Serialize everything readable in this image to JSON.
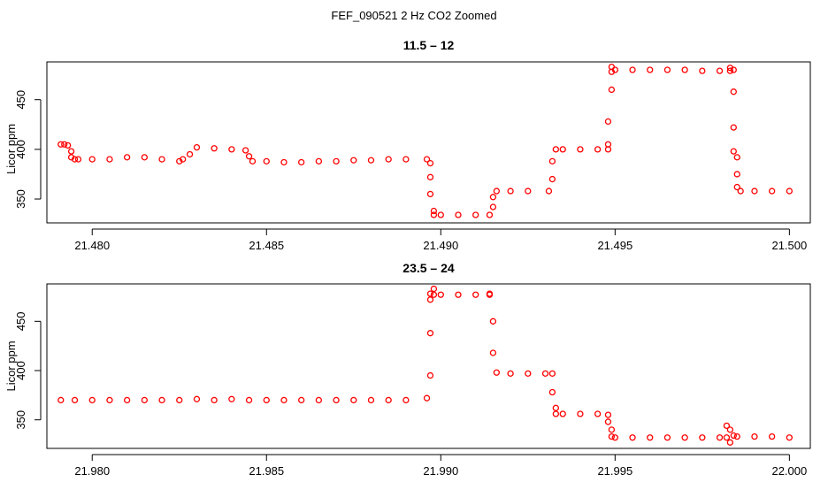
{
  "figure": {
    "title": "FEF_090521  2 Hz CO2 Zoomed"
  },
  "colors": {
    "points": "#ff0000",
    "axes": "#000000",
    "background": "#ffffff"
  },
  "chart_data": [
    {
      "type": "scatter",
      "title": "11.5 – 12",
      "xlabel": "",
      "ylabel": "Licor ppm",
      "xlim": [
        21.4787,
        21.5006
      ],
      "ylim": [
        326,
        488
      ],
      "xticks": [
        21.48,
        21.485,
        21.49,
        21.495,
        21.5
      ],
      "xtick_labels": [
        "21.480",
        "21.485",
        "21.490",
        "21.495",
        "21.500"
      ],
      "yticks": [
        350,
        400,
        450
      ],
      "ytick_labels": [
        "350",
        "400",
        "450"
      ],
      "grid": false,
      "legend": "none",
      "series": [
        {
          "x": [
            21.4791,
            21.4792,
            21.4793,
            21.4794,
            21.4794,
            21.4795,
            21.4796,
            21.48,
            21.4805,
            21.481,
            21.4815,
            21.482,
            21.4825,
            21.4826,
            21.4828,
            21.483,
            21.4835,
            21.484,
            21.4844,
            21.4845,
            21.4846,
            21.485,
            21.4855,
            21.486,
            21.4865,
            21.487,
            21.4875,
            21.488,
            21.4885,
            21.489,
            21.4896,
            21.4897,
            21.4897,
            21.4897,
            21.4898,
            21.4898,
            21.49,
            21.4905,
            21.491,
            21.4914,
            21.4915,
            21.4915,
            21.4916,
            21.492,
            21.4925,
            21.4931,
            21.4932,
            21.4932,
            21.4933,
            21.4935,
            21.494,
            21.4945,
            21.4948,
            21.4948,
            21.4948,
            21.4949,
            21.4949,
            21.4949,
            21.495,
            21.4955,
            21.496,
            21.4965,
            21.497,
            21.4975,
            21.498,
            21.4983,
            21.4983,
            21.4984,
            21.4984,
            21.4984,
            21.4984,
            21.4985,
            21.4985,
            21.4985,
            21.4986,
            21.499,
            21.4995,
            21.5
          ],
          "y": [
            405,
            405,
            404,
            398,
            392,
            390,
            390,
            390,
            390,
            392,
            392,
            390,
            388,
            390,
            395,
            402,
            401,
            400,
            399,
            393,
            388,
            388,
            387,
            387,
            388,
            388,
            389,
            389,
            390,
            390,
            390,
            386,
            372,
            355,
            338,
            334,
            334,
            334,
            334,
            334,
            342,
            352,
            358,
            358,
            358,
            358,
            370,
            388,
            400,
            400,
            400,
            400,
            400,
            405,
            428,
            460,
            478,
            483,
            480,
            480,
            480,
            480,
            480,
            479,
            479,
            479,
            482,
            480,
            458,
            422,
            398,
            392,
            375,
            362,
            358,
            358,
            358,
            358
          ]
        }
      ]
    },
    {
      "type": "scatter",
      "title": "23.5 – 24",
      "xlabel": "",
      "ylabel": "Licor ppm",
      "xlim": [
        21.9787,
        22.0006
      ],
      "ylim": [
        321,
        488
      ],
      "xticks": [
        21.98,
        21.985,
        21.99,
        21.995,
        22.0
      ],
      "xtick_labels": [
        "21.980",
        "21.985",
        "21.990",
        "21.995",
        "22.000"
      ],
      "yticks": [
        350,
        400,
        450
      ],
      "ytick_labels": [
        "350",
        "400",
        "450"
      ],
      "grid": false,
      "legend": "none",
      "series": [
        {
          "x": [
            21.9791,
            21.9795,
            21.98,
            21.9805,
            21.981,
            21.9815,
            21.982,
            21.9825,
            21.983,
            21.9835,
            21.984,
            21.9845,
            21.985,
            21.9855,
            21.986,
            21.9865,
            21.987,
            21.9875,
            21.988,
            21.9885,
            21.989,
            21.9896,
            21.9897,
            21.9897,
            21.9897,
            21.9897,
            21.9898,
            21.9898,
            21.99,
            21.9905,
            21.991,
            21.9914,
            21.9914,
            21.9915,
            21.9915,
            21.9916,
            21.992,
            21.9925,
            21.993,
            21.9932,
            21.9932,
            21.9933,
            21.9933,
            21.9935,
            21.994,
            21.9945,
            21.9948,
            21.9948,
            21.9949,
            21.9949,
            21.995,
            21.9955,
            21.996,
            21.9965,
            21.997,
            21.9975,
            21.998,
            21.9982,
            21.9982,
            21.9983,
            21.9983,
            21.9984,
            21.9985,
            21.999,
            21.9995,
            22.0
          ],
          "y": [
            370,
            370,
            370,
            370,
            370,
            370,
            370,
            370,
            371,
            370,
            371,
            370,
            370,
            370,
            370,
            370,
            370,
            370,
            370,
            370,
            370,
            372,
            395,
            438,
            472,
            478,
            483,
            477,
            477,
            477,
            477,
            477,
            478,
            450,
            418,
            398,
            397,
            397,
            397,
            397,
            378,
            362,
            356,
            356,
            356,
            356,
            355,
            348,
            340,
            333,
            332,
            332,
            332,
            332,
            332,
            332,
            332,
            332,
            344,
            340,
            327,
            334,
            333,
            333,
            333,
            332
          ]
        }
      ]
    }
  ]
}
